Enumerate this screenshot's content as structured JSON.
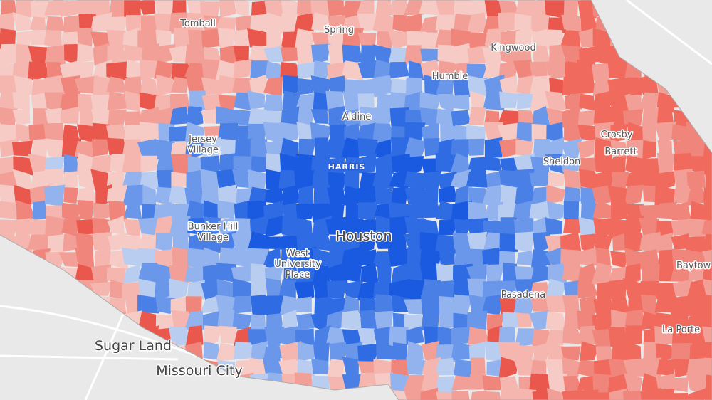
{
  "map": {
    "labels": [
      {
        "lines": [
          "Tomball"
        ]
      },
      {
        "lines": [
          "Spring"
        ]
      },
      {
        "lines": [
          "Kingwood"
        ]
      },
      {
        "lines": [
          "Humble"
        ]
      },
      {
        "lines": [
          "Aldine"
        ]
      },
      {
        "lines": [
          "Jersey",
          "Village"
        ]
      },
      {
        "lines": [
          "HARRIS"
        ]
      },
      {
        "lines": [
          "Crosby"
        ]
      },
      {
        "lines": [
          "Barrett"
        ]
      },
      {
        "lines": [
          "Sheldon"
        ]
      },
      {
        "lines": [
          "Houston"
        ]
      },
      {
        "lines": [
          "Bunker Hill",
          "Village"
        ]
      },
      {
        "lines": [
          "West",
          "University",
          "Place"
        ]
      },
      {
        "lines": [
          "Pasadena"
        ]
      },
      {
        "lines": [
          "Baytow"
        ]
      },
      {
        "lines": [
          "La Porte"
        ]
      },
      {
        "lines": [
          "Sugar Land"
        ]
      },
      {
        "lines": [
          "Missouri City"
        ]
      }
    ]
  }
}
